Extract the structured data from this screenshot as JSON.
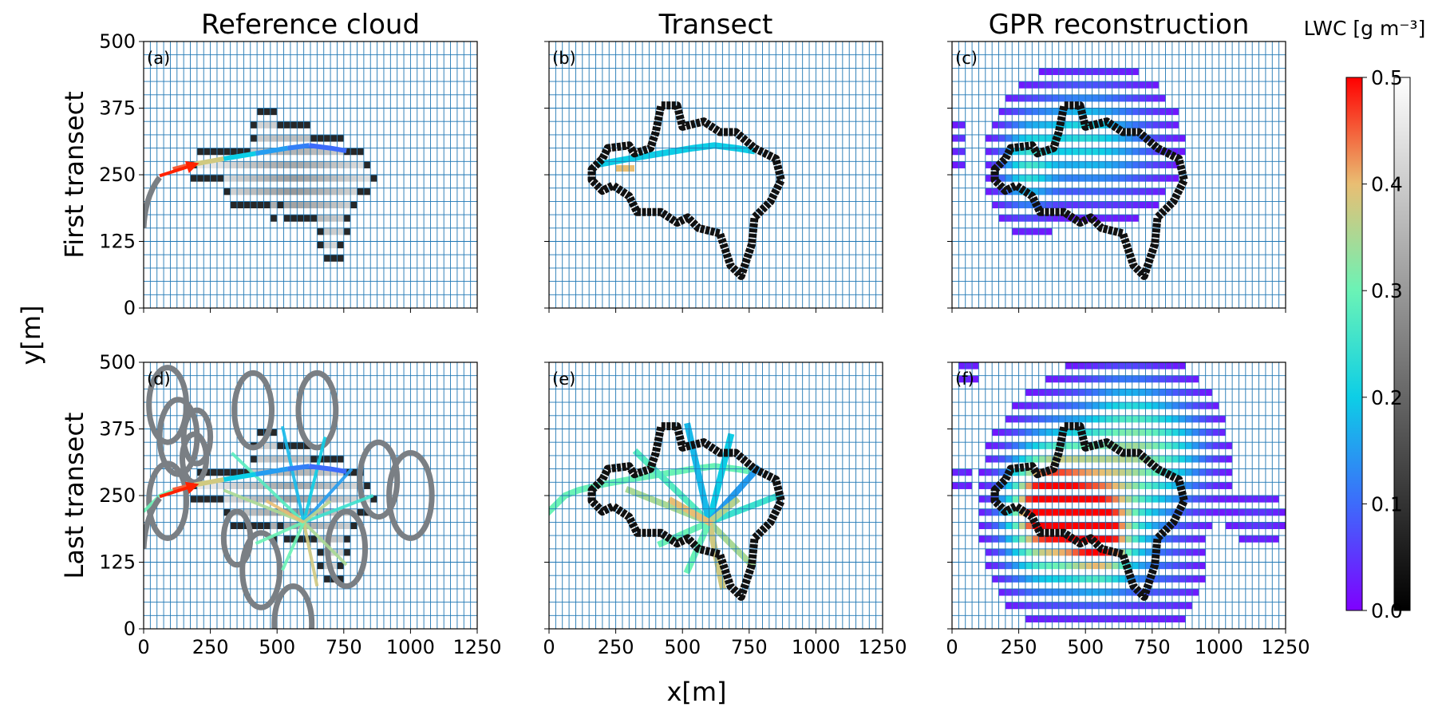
{
  "figure": {
    "column_titles": [
      "Reference cloud",
      "Transect",
      "GPR reconstruction"
    ],
    "row_labels": [
      "First transect",
      "Last transect"
    ],
    "xlabel": "x[m]",
    "ylabel": "y[m]",
    "colorbar_label": "LWC [g m⁻³]",
    "panel_letters": [
      "(a)",
      "(b)",
      "(c)",
      "(d)",
      "(e)",
      "(f)"
    ]
  },
  "chart_data": {
    "type": "heatmap",
    "grid": {
      "nx": 52,
      "ny": 40,
      "cell_m": 25
    },
    "xlim": [
      0,
      1250
    ],
    "ylim": [
      0,
      500
    ],
    "xticks": [
      0,
      250,
      500,
      750,
      1000,
      1250
    ],
    "yticks": [
      0,
      125,
      250,
      375,
      500
    ],
    "colorbar": {
      "min": 0.0,
      "max": 0.5,
      "ticks": [
        0.0,
        0.1,
        0.2,
        0.3,
        0.4,
        0.5
      ],
      "colormaps": [
        "rainbow",
        "gray"
      ]
    },
    "cloud_outline_m": [
      [
        160,
        260
      ],
      [
        200,
        280
      ],
      [
        220,
        300
      ],
      [
        300,
        305
      ],
      [
        320,
        290
      ],
      [
        380,
        300
      ],
      [
        400,
        330
      ],
      [
        420,
        380
      ],
      [
        480,
        380
      ],
      [
        500,
        340
      ],
      [
        580,
        350
      ],
      [
        640,
        330
      ],
      [
        700,
        330
      ],
      [
        770,
        300
      ],
      [
        850,
        280
      ],
      [
        870,
        240
      ],
      [
        830,
        200
      ],
      [
        770,
        170
      ],
      [
        760,
        120
      ],
      [
        720,
        60
      ],
      [
        680,
        80
      ],
      [
        640,
        140
      ],
      [
        560,
        150
      ],
      [
        520,
        170
      ],
      [
        480,
        160
      ],
      [
        420,
        180
      ],
      [
        330,
        180
      ],
      [
        300,
        210
      ],
      [
        240,
        230
      ],
      [
        200,
        220
      ],
      [
        160,
        240
      ]
    ],
    "first_transect_path_m": [
      [
        0,
        220
      ],
      [
        60,
        250
      ],
      [
        110,
        260
      ],
      [
        190,
        270
      ],
      [
        300,
        280
      ],
      [
        420,
        290
      ],
      [
        540,
        300
      ],
      [
        620,
        305
      ],
      [
        700,
        300
      ],
      [
        760,
        295
      ]
    ],
    "first_transect_lwc": [
      0.0,
      0.05,
      0.45,
      0.38,
      0.2,
      0.15,
      0.12,
      0.1,
      0.1,
      0.0
    ],
    "first_gpr_blobs": [
      {
        "x": 30,
        "y": 300,
        "sx": 20,
        "sy": 40,
        "peak": 0.05
      },
      {
        "x": 280,
        "y": 260,
        "sx": 70,
        "sy": 60,
        "peak": 0.22
      },
      {
        "x": 560,
        "y": 300,
        "sx": 150,
        "sy": 75,
        "peak": 0.16
      },
      {
        "x": 450,
        "y": 330,
        "sx": 110,
        "sy": 55,
        "peak": 0.1
      }
    ],
    "last_gpr_blobs": [
      {
        "x": 330,
        "y": 210,
        "sx": 90,
        "sy": 70,
        "peak": 0.42
      },
      {
        "x": 550,
        "y": 160,
        "sx": 90,
        "sy": 60,
        "peak": 0.4
      },
      {
        "x": 600,
        "y": 260,
        "sx": 170,
        "sy": 110,
        "peak": 0.22
      },
      {
        "x": 420,
        "y": 280,
        "sx": 120,
        "sy": 70,
        "peak": 0.18
      },
      {
        "x": 720,
        "y": 340,
        "sx": 120,
        "sy": 70,
        "peak": 0.16
      },
      {
        "x": 860,
        "y": 330,
        "sx": 90,
        "sy": 60,
        "peak": 0.08
      },
      {
        "x": 1150,
        "y": 200,
        "sx": 70,
        "sy": 40,
        "peak": 0.05
      },
      {
        "x": 350,
        "y": 100,
        "sx": 100,
        "sy": 50,
        "peak": 0.07
      },
      {
        "x": 30,
        "y": 280,
        "sx": 25,
        "sy": 25,
        "peak": 0.04
      },
      {
        "x": 60,
        "y": 480,
        "sx": 30,
        "sy": 30,
        "peak": 0.04
      },
      {
        "x": 800,
        "y": 80,
        "sx": 80,
        "sy": 50,
        "peak": 0.05
      },
      {
        "x": 650,
        "y": 420,
        "sx": 90,
        "sy": 50,
        "peak": 0.06
      }
    ],
    "last_transect_segments_m": [
      [
        [
          0,
          220
        ],
        [
          60,
          250
        ],
        [
          110,
          260
        ],
        [
          190,
          270
        ],
        [
          300,
          280
        ],
        [
          420,
          290
        ],
        [
          540,
          300
        ],
        [
          620,
          305
        ],
        [
          700,
          300
        ],
        [
          760,
          295
        ]
      ],
      [
        [
          600,
          200
        ],
        [
          300,
          260
        ]
      ],
      [
        [
          600,
          200
        ],
        [
          420,
          160
        ]
      ],
      [
        [
          600,
          200
        ],
        [
          330,
          330
        ]
      ],
      [
        [
          600,
          200
        ],
        [
          520,
          380
        ]
      ],
      [
        [
          600,
          200
        ],
        [
          680,
          360
        ]
      ],
      [
        [
          600,
          200
        ],
        [
          780,
          300
        ]
      ],
      [
        [
          600,
          200
        ],
        [
          860,
          250
        ]
      ],
      [
        [
          600,
          200
        ],
        [
          760,
          120
        ]
      ],
      [
        [
          600,
          200
        ],
        [
          650,
          80
        ]
      ],
      [
        [
          600,
          200
        ],
        [
          520,
          110
        ]
      ],
      [
        [
          600,
          200
        ],
        [
          700,
          240
        ]
      ],
      [
        [
          600,
          200
        ],
        [
          460,
          240
        ]
      ]
    ],
    "last_transect_lwc": [
      0.3,
      0.35,
      0.3,
      0.28,
      0.18,
      0.2,
      0.15,
      0.25,
      0.35,
      0.38,
      0.3,
      0.36,
      0.4
    ],
    "loops_m": [
      {
        "cx": 90,
        "cy": 420,
        "r": 70
      },
      {
        "cx": 90,
        "cy": 240,
        "r": 70
      },
      {
        "cx": 130,
        "cy": 360,
        "r": 70
      },
      {
        "cx": 190,
        "cy": 320,
        "r": 45
      },
      {
        "cx": 200,
        "cy": 360,
        "r": 50
      },
      {
        "cx": 410,
        "cy": 410,
        "r": 70
      },
      {
        "cx": 650,
        "cy": 410,
        "r": 70
      },
      {
        "cx": 440,
        "cy": 110,
        "r": 70
      },
      {
        "cx": 350,
        "cy": 170,
        "r": 50
      },
      {
        "cx": 760,
        "cy": 150,
        "r": 70
      },
      {
        "cx": 880,
        "cy": 280,
        "r": 70
      },
      {
        "cx": 1000,
        "cy": 250,
        "r": 80
      },
      {
        "cx": 560,
        "cy": 10,
        "r": 70
      }
    ]
  }
}
